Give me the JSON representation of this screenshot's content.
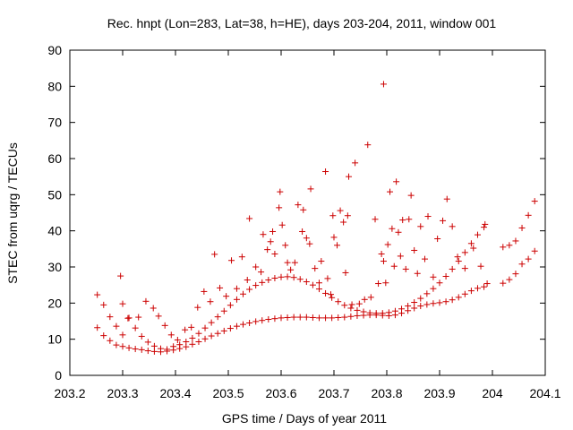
{
  "chart_data": {
    "type": "scatter",
    "title": "Rec. hnpt (Lon=283, Lat=38, h=HE), days 203-204, 2011, window 001",
    "xlabel": "GPS time / Days of year 2011",
    "ylabel": "STEC from uqrg / TECUs",
    "xlim": [
      203.2,
      204.1
    ],
    "ylim": [
      0,
      90
    ],
    "xticks": [
      203.2,
      203.3,
      203.4,
      203.5,
      203.6,
      203.7,
      203.8,
      203.9,
      204,
      204.1
    ],
    "xtick_labels": [
      "203.2",
      "203.3",
      "203.4",
      "203.5",
      "203.6",
      "203.7",
      "203.8",
      "203.9",
      "204",
      "204.1"
    ],
    "yticks": [
      0,
      10,
      20,
      30,
      40,
      50,
      60,
      70,
      80,
      90
    ],
    "ytick_labels": [
      "0",
      "10",
      "20",
      "30",
      "40",
      "50",
      "60",
      "70",
      "80",
      "90"
    ],
    "grid": false,
    "legend": "none",
    "marker": "+",
    "color": "#cc0000",
    "series": [
      {
        "name": "STEC",
        "points": [
          [
            203.252,
            22.3
          ],
          [
            203.252,
            13.2
          ],
          [
            203.264,
            19.5
          ],
          [
            203.264,
            11.0
          ],
          [
            203.276,
            16.2
          ],
          [
            203.276,
            9.6
          ],
          [
            203.288,
            13.6
          ],
          [
            203.288,
            8.4
          ],
          [
            203.3,
            11.2
          ],
          [
            203.3,
            8.0
          ],
          [
            203.312,
            15.9
          ],
          [
            203.312,
            7.6
          ],
          [
            203.324,
            13.1
          ],
          [
            203.324,
            7.3
          ],
          [
            203.336,
            10.8
          ],
          [
            203.336,
            7.1
          ],
          [
            203.348,
            9.2
          ],
          [
            203.348,
            6.8
          ],
          [
            203.36,
            8.1
          ],
          [
            203.36,
            6.6
          ],
          [
            203.372,
            7.4
          ],
          [
            203.372,
            6.5
          ],
          [
            203.384,
            7.2
          ],
          [
            203.384,
            6.7
          ],
          [
            203.396,
            8.0
          ],
          [
            203.396,
            7.0
          ],
          [
            203.408,
            8.5
          ],
          [
            203.408,
            7.4
          ],
          [
            203.42,
            9.3
          ],
          [
            203.42,
            7.9
          ],
          [
            203.432,
            10.3
          ],
          [
            203.432,
            8.6
          ],
          [
            203.444,
            11.6
          ],
          [
            203.444,
            9.3
          ],
          [
            203.456,
            13.1
          ],
          [
            203.456,
            10.1
          ],
          [
            203.468,
            14.6
          ],
          [
            203.468,
            10.9
          ],
          [
            203.48,
            16.2
          ],
          [
            203.48,
            11.6
          ],
          [
            203.492,
            17.8
          ],
          [
            203.492,
            12.3
          ],
          [
            203.504,
            19.4
          ],
          [
            203.504,
            13.0
          ],
          [
            203.516,
            21.0
          ],
          [
            203.516,
            13.6
          ],
          [
            203.528,
            22.5
          ],
          [
            203.528,
            14.1
          ],
          [
            203.54,
            23.8
          ],
          [
            203.54,
            14.5
          ],
          [
            203.552,
            24.9
          ],
          [
            203.552,
            14.9
          ],
          [
            203.564,
            25.7
          ],
          [
            203.564,
            15.2
          ],
          [
            203.576,
            26.4
          ],
          [
            203.576,
            15.5
          ],
          [
            203.588,
            26.9
          ],
          [
            203.588,
            15.7
          ],
          [
            203.6,
            27.2
          ],
          [
            203.6,
            15.9
          ],
          [
            203.612,
            27.3
          ],
          [
            203.612,
            16.0
          ],
          [
            203.624,
            27.1
          ],
          [
            203.624,
            16.1
          ],
          [
            203.636,
            26.6
          ],
          [
            203.636,
            16.1
          ],
          [
            203.648,
            25.9
          ],
          [
            203.648,
            16.1
          ],
          [
            203.66,
            25.0
          ],
          [
            203.66,
            16.0
          ],
          [
            203.672,
            23.9
          ],
          [
            203.672,
            15.9
          ],
          [
            203.684,
            22.7
          ],
          [
            203.684,
            15.9
          ],
          [
            203.696,
            21.5
          ],
          [
            203.696,
            15.9
          ],
          [
            203.708,
            20.4
          ],
          [
            203.708,
            16.0
          ],
          [
            203.72,
            19.4
          ],
          [
            203.72,
            16.1
          ],
          [
            203.732,
            18.6
          ],
          [
            203.732,
            16.3
          ],
          [
            203.744,
            18.0
          ],
          [
            203.744,
            16.5
          ],
          [
            203.756,
            17.6
          ],
          [
            203.756,
            16.6
          ],
          [
            203.768,
            17.3
          ],
          [
            203.768,
            16.7
          ],
          [
            203.78,
            17.2
          ],
          [
            203.78,
            16.7
          ],
          [
            203.792,
            17.2
          ],
          [
            203.792,
            16.6
          ],
          [
            203.804,
            17.4
          ],
          [
            203.804,
            16.5
          ],
          [
            203.816,
            17.8
          ],
          [
            203.816,
            16.7
          ],
          [
            203.828,
            18.4
          ],
          [
            203.828,
            17.2
          ],
          [
            203.84,
            19.2
          ],
          [
            203.84,
            17.9
          ],
          [
            203.852,
            20.2
          ],
          [
            203.852,
            18.6
          ],
          [
            203.864,
            21.3
          ],
          [
            203.864,
            19.2
          ],
          [
            203.876,
            22.6
          ],
          [
            203.876,
            19.6
          ],
          [
            203.888,
            24.0
          ],
          [
            203.888,
            19.9
          ],
          [
            203.9,
            25.6
          ],
          [
            203.9,
            20.1
          ],
          [
            203.912,
            27.4
          ],
          [
            203.912,
            20.4
          ],
          [
            203.924,
            29.4
          ],
          [
            203.924,
            20.9
          ],
          [
            203.936,
            31.6
          ],
          [
            203.936,
            21.6
          ],
          [
            203.948,
            34.0
          ],
          [
            203.948,
            22.5
          ],
          [
            203.96,
            36.5
          ],
          [
            203.96,
            23.4
          ],
          [
            203.972,
            38.9
          ],
          [
            203.972,
            24.1
          ],
          [
            203.984,
            41.0
          ],
          [
            203.984,
            24.5
          ],
          [
            204.02,
            35.5
          ],
          [
            204.02,
            25.5
          ],
          [
            204.032,
            36.0
          ],
          [
            204.032,
            26.5
          ],
          [
            204.044,
            37.2
          ],
          [
            204.044,
            28.1
          ],
          [
            204.056,
            40.8
          ],
          [
            204.056,
            30.8
          ],
          [
            204.068,
            44.3
          ],
          [
            204.068,
            32.2
          ],
          [
            204.08,
            48.2
          ],
          [
            204.08,
            34.4
          ],
          [
            203.296,
            27.5
          ],
          [
            203.3,
            19.8
          ],
          [
            203.31,
            15.8
          ],
          [
            203.33,
            16.1
          ],
          [
            203.344,
            20.5
          ],
          [
            203.358,
            18.6
          ],
          [
            203.368,
            16.4
          ],
          [
            203.38,
            13.8
          ],
          [
            203.392,
            11.2
          ],
          [
            203.404,
            9.8
          ],
          [
            203.418,
            12.6
          ],
          [
            203.43,
            13.3
          ],
          [
            203.442,
            18.8
          ],
          [
            203.454,
            23.2
          ],
          [
            203.466,
            20.4
          ],
          [
            203.474,
            33.5
          ],
          [
            203.484,
            24.2
          ],
          [
            203.496,
            21.9
          ],
          [
            203.506,
            31.8
          ],
          [
            203.516,
            24.0
          ],
          [
            203.526,
            32.8
          ],
          [
            203.536,
            26.4
          ],
          [
            203.54,
            43.4
          ],
          [
            203.552,
            30.0
          ],
          [
            203.562,
            28.6
          ],
          [
            203.566,
            39.0
          ],
          [
            203.574,
            34.8
          ],
          [
            203.58,
            37.0
          ],
          [
            203.584,
            39.8
          ],
          [
            203.588,
            33.6
          ],
          [
            203.596,
            46.4
          ],
          [
            203.598,
            50.8
          ],
          [
            203.602,
            41.6
          ],
          [
            203.608,
            36.0
          ],
          [
            203.612,
            31.2
          ],
          [
            203.618,
            29.2
          ],
          [
            203.626,
            31.2
          ],
          [
            203.632,
            47.2
          ],
          [
            203.64,
            39.8
          ],
          [
            203.642,
            45.8
          ],
          [
            203.648,
            38.0
          ],
          [
            203.654,
            36.4
          ],
          [
            203.656,
            51.6
          ],
          [
            203.664,
            29.6
          ],
          [
            203.672,
            25.6
          ],
          [
            203.676,
            31.6
          ],
          [
            203.684,
            56.4
          ],
          [
            203.688,
            26.8
          ],
          [
            203.694,
            22.4
          ],
          [
            203.698,
            44.2
          ],
          [
            203.7,
            38.2
          ],
          [
            203.706,
            36.0
          ],
          [
            203.712,
            45.6
          ],
          [
            203.718,
            42.4
          ],
          [
            203.722,
            28.4
          ],
          [
            203.726,
            44.2
          ],
          [
            203.728,
            55.0
          ],
          [
            203.734,
            19.6
          ],
          [
            203.74,
            58.8
          ],
          [
            203.748,
            19.8
          ],
          [
            203.758,
            21.0
          ],
          [
            203.764,
            63.8
          ],
          [
            203.77,
            21.6
          ],
          [
            203.778,
            43.2
          ],
          [
            203.784,
            25.4
          ],
          [
            203.79,
            33.6
          ],
          [
            203.794,
            80.6
          ],
          [
            203.794,
            31.6
          ],
          [
            203.798,
            25.6
          ],
          [
            203.802,
            36.2
          ],
          [
            203.806,
            50.8
          ],
          [
            203.81,
            40.6
          ],
          [
            203.814,
            30.2
          ],
          [
            203.818,
            53.6
          ],
          [
            203.822,
            39.6
          ],
          [
            203.826,
            33.0
          ],
          [
            203.83,
            43.0
          ],
          [
            203.836,
            29.4
          ],
          [
            203.842,
            43.2
          ],
          [
            203.846,
            49.8
          ],
          [
            203.852,
            34.6
          ],
          [
            203.858,
            28.2
          ],
          [
            203.864,
            41.2
          ],
          [
            203.872,
            32.2
          ],
          [
            203.878,
            44.0
          ],
          [
            203.888,
            27.2
          ],
          [
            203.896,
            37.8
          ],
          [
            203.906,
            42.8
          ],
          [
            203.914,
            48.8
          ],
          [
            203.924,
            41.2
          ],
          [
            203.934,
            32.8
          ],
          [
            203.948,
            29.6
          ],
          [
            203.964,
            35.2
          ],
          [
            203.978,
            30.2
          ],
          [
            203.986,
            41.8
          ],
          [
            203.99,
            25.4
          ]
        ]
      }
    ]
  }
}
